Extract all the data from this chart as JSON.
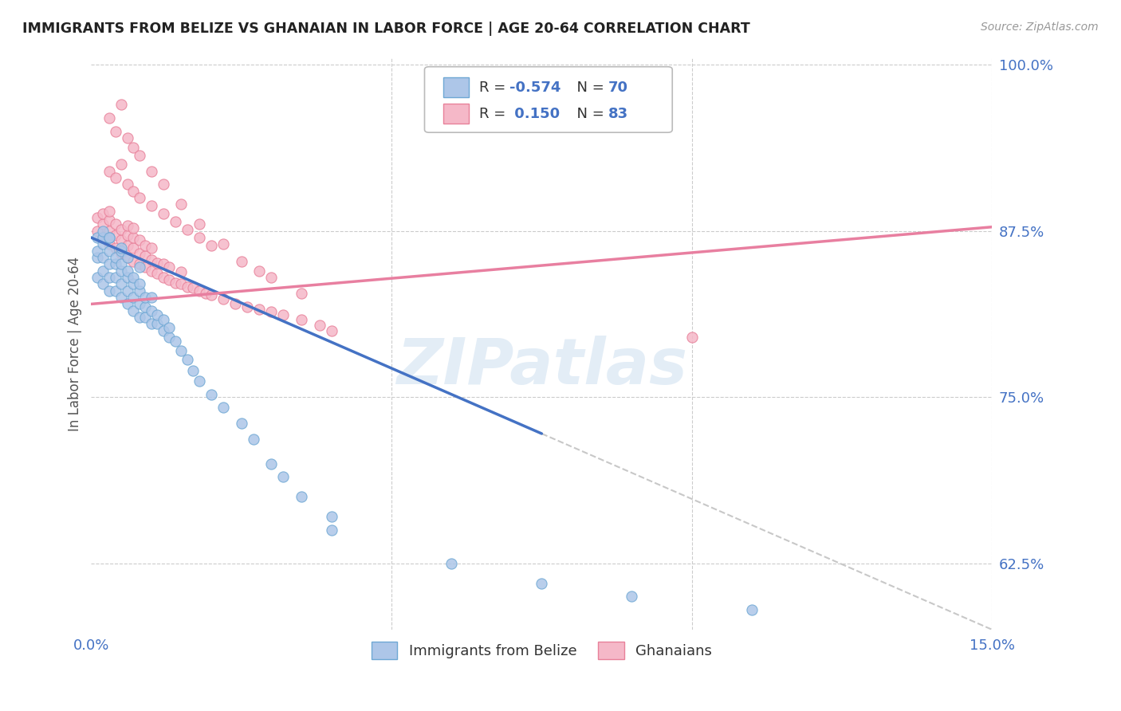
{
  "title": "IMMIGRANTS FROM BELIZE VS GHANAIAN IN LABOR FORCE | AGE 20-64 CORRELATION CHART",
  "source": "Source: ZipAtlas.com",
  "ylabel": "In Labor Force | Age 20-64",
  "xlim": [
    0.0,
    0.15
  ],
  "ylim": [
    0.575,
    1.005
  ],
  "xticks": [
    0.0,
    0.05,
    0.1,
    0.15
  ],
  "xticklabels": [
    "0.0%",
    "",
    "",
    "15.0%"
  ],
  "yticks_right": [
    0.625,
    0.75,
    0.875,
    1.0
  ],
  "ytick_right_labels": [
    "62.5%",
    "75.0%",
    "87.5%",
    "100.0%"
  ],
  "belize_color": "#adc6e8",
  "belize_edge": "#6fa8d4",
  "ghana_color": "#f5b8c8",
  "ghana_edge": "#e8819a",
  "blue_line_color": "#4472c4",
  "pink_line_color": "#e87fa0",
  "dashed_line_color": "#c8c8c8",
  "watermark_text": "ZIPatlas",
  "belize_scatter_x": [
    0.001,
    0.001,
    0.001,
    0.001,
    0.002,
    0.002,
    0.002,
    0.002,
    0.002,
    0.003,
    0.003,
    0.003,
    0.003,
    0.003,
    0.004,
    0.004,
    0.004,
    0.004,
    0.005,
    0.005,
    0.005,
    0.005,
    0.005,
    0.006,
    0.006,
    0.006,
    0.006,
    0.007,
    0.007,
    0.007,
    0.007,
    0.008,
    0.008,
    0.008,
    0.008,
    0.009,
    0.009,
    0.009,
    0.01,
    0.01,
    0.01,
    0.011,
    0.011,
    0.012,
    0.012,
    0.013,
    0.013,
    0.014,
    0.015,
    0.016,
    0.017,
    0.018,
    0.02,
    0.022,
    0.025,
    0.027,
    0.03,
    0.032,
    0.035,
    0.04,
    0.002,
    0.003,
    0.005,
    0.006,
    0.008,
    0.04,
    0.06,
    0.075,
    0.09,
    0.11
  ],
  "belize_scatter_y": [
    0.84,
    0.855,
    0.86,
    0.87,
    0.835,
    0.845,
    0.855,
    0.865,
    0.87,
    0.83,
    0.84,
    0.85,
    0.86,
    0.87,
    0.83,
    0.84,
    0.85,
    0.855,
    0.825,
    0.835,
    0.845,
    0.85,
    0.86,
    0.82,
    0.83,
    0.84,
    0.845,
    0.815,
    0.825,
    0.835,
    0.84,
    0.81,
    0.82,
    0.83,
    0.835,
    0.81,
    0.818,
    0.825,
    0.805,
    0.815,
    0.825,
    0.805,
    0.812,
    0.8,
    0.808,
    0.795,
    0.802,
    0.792,
    0.785,
    0.778,
    0.77,
    0.762,
    0.752,
    0.742,
    0.73,
    0.718,
    0.7,
    0.69,
    0.675,
    0.66,
    0.875,
    0.87,
    0.862,
    0.855,
    0.848,
    0.65,
    0.625,
    0.61,
    0.6,
    0.59
  ],
  "ghana_scatter_x": [
    0.001,
    0.001,
    0.002,
    0.002,
    0.002,
    0.003,
    0.003,
    0.003,
    0.003,
    0.004,
    0.004,
    0.004,
    0.005,
    0.005,
    0.005,
    0.006,
    0.006,
    0.006,
    0.006,
    0.007,
    0.007,
    0.007,
    0.007,
    0.008,
    0.008,
    0.008,
    0.009,
    0.009,
    0.009,
    0.01,
    0.01,
    0.01,
    0.011,
    0.011,
    0.012,
    0.012,
    0.013,
    0.013,
    0.014,
    0.015,
    0.015,
    0.016,
    0.017,
    0.018,
    0.019,
    0.02,
    0.022,
    0.024,
    0.026,
    0.028,
    0.03,
    0.032,
    0.035,
    0.038,
    0.04,
    0.003,
    0.004,
    0.005,
    0.006,
    0.007,
    0.008,
    0.01,
    0.012,
    0.014,
    0.016,
    0.018,
    0.02,
    0.025,
    0.03,
    0.035,
    0.003,
    0.004,
    0.005,
    0.006,
    0.007,
    0.008,
    0.01,
    0.012,
    0.015,
    0.018,
    0.022,
    0.028,
    0.1
  ],
  "ghana_scatter_y": [
    0.875,
    0.885,
    0.87,
    0.88,
    0.888,
    0.865,
    0.875,
    0.883,
    0.89,
    0.862,
    0.872,
    0.88,
    0.858,
    0.868,
    0.876,
    0.855,
    0.864,
    0.872,
    0.879,
    0.852,
    0.862,
    0.87,
    0.877,
    0.85,
    0.858,
    0.868,
    0.848,
    0.856,
    0.864,
    0.845,
    0.853,
    0.862,
    0.843,
    0.851,
    0.84,
    0.85,
    0.838,
    0.848,
    0.836,
    0.835,
    0.844,
    0.833,
    0.832,
    0.83,
    0.828,
    0.827,
    0.824,
    0.82,
    0.818,
    0.816,
    0.814,
    0.812,
    0.808,
    0.804,
    0.8,
    0.92,
    0.915,
    0.925,
    0.91,
    0.905,
    0.9,
    0.894,
    0.888,
    0.882,
    0.876,
    0.87,
    0.864,
    0.852,
    0.84,
    0.828,
    0.96,
    0.95,
    0.97,
    0.945,
    0.938,
    0.932,
    0.92,
    0.91,
    0.895,
    0.88,
    0.865,
    0.845,
    0.795
  ],
  "belize_trend_x": [
    0.0,
    0.15
  ],
  "belize_trend_y": [
    0.87,
    0.575
  ],
  "belize_trend_solid_end": 0.075,
  "ghana_trend_x": [
    0.0,
    0.15
  ],
  "ghana_trend_y": [
    0.82,
    0.878
  ]
}
